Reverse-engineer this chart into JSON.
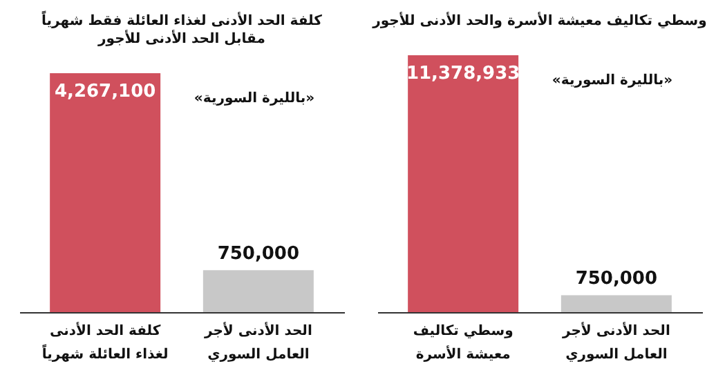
{
  "chart_data": [
    {
      "type": "bar",
      "title": "وسطي تكاليف معيشة الأسرة والحد الأدنى للأجور",
      "categories": [
        "وسطي تكاليف معيشة الأسرة",
        "الحد الأدنى لأجر العامل السوري"
      ],
      "values": [
        11378933,
        750000
      ],
      "colors": [
        "#d0505d",
        "#c8c8c8"
      ],
      "value_labels": [
        "11,378,933",
        "750,000"
      ],
      "annotations": [
        "«بالليرة السورية»"
      ]
    },
    {
      "type": "bar",
      "title": "كلفة الحد الأدنى لغذاء العائلة فقط شهرياً",
      "subtitle": "مقابل الحد الأدنى للأجور",
      "categories": [
        "كلفة الحد الأدنى لغذاء العائلة شهرياً",
        "الحد الأدنى لأجر العامل السوري"
      ],
      "values": [
        4267100,
        750000
      ],
      "colors": [
        "#d0505d",
        "#c8c8c8"
      ],
      "value_labels": [
        "4,267,100",
        "750,000"
      ],
      "annotations": [
        "«بالليرة السورية»"
      ]
    }
  ]
}
